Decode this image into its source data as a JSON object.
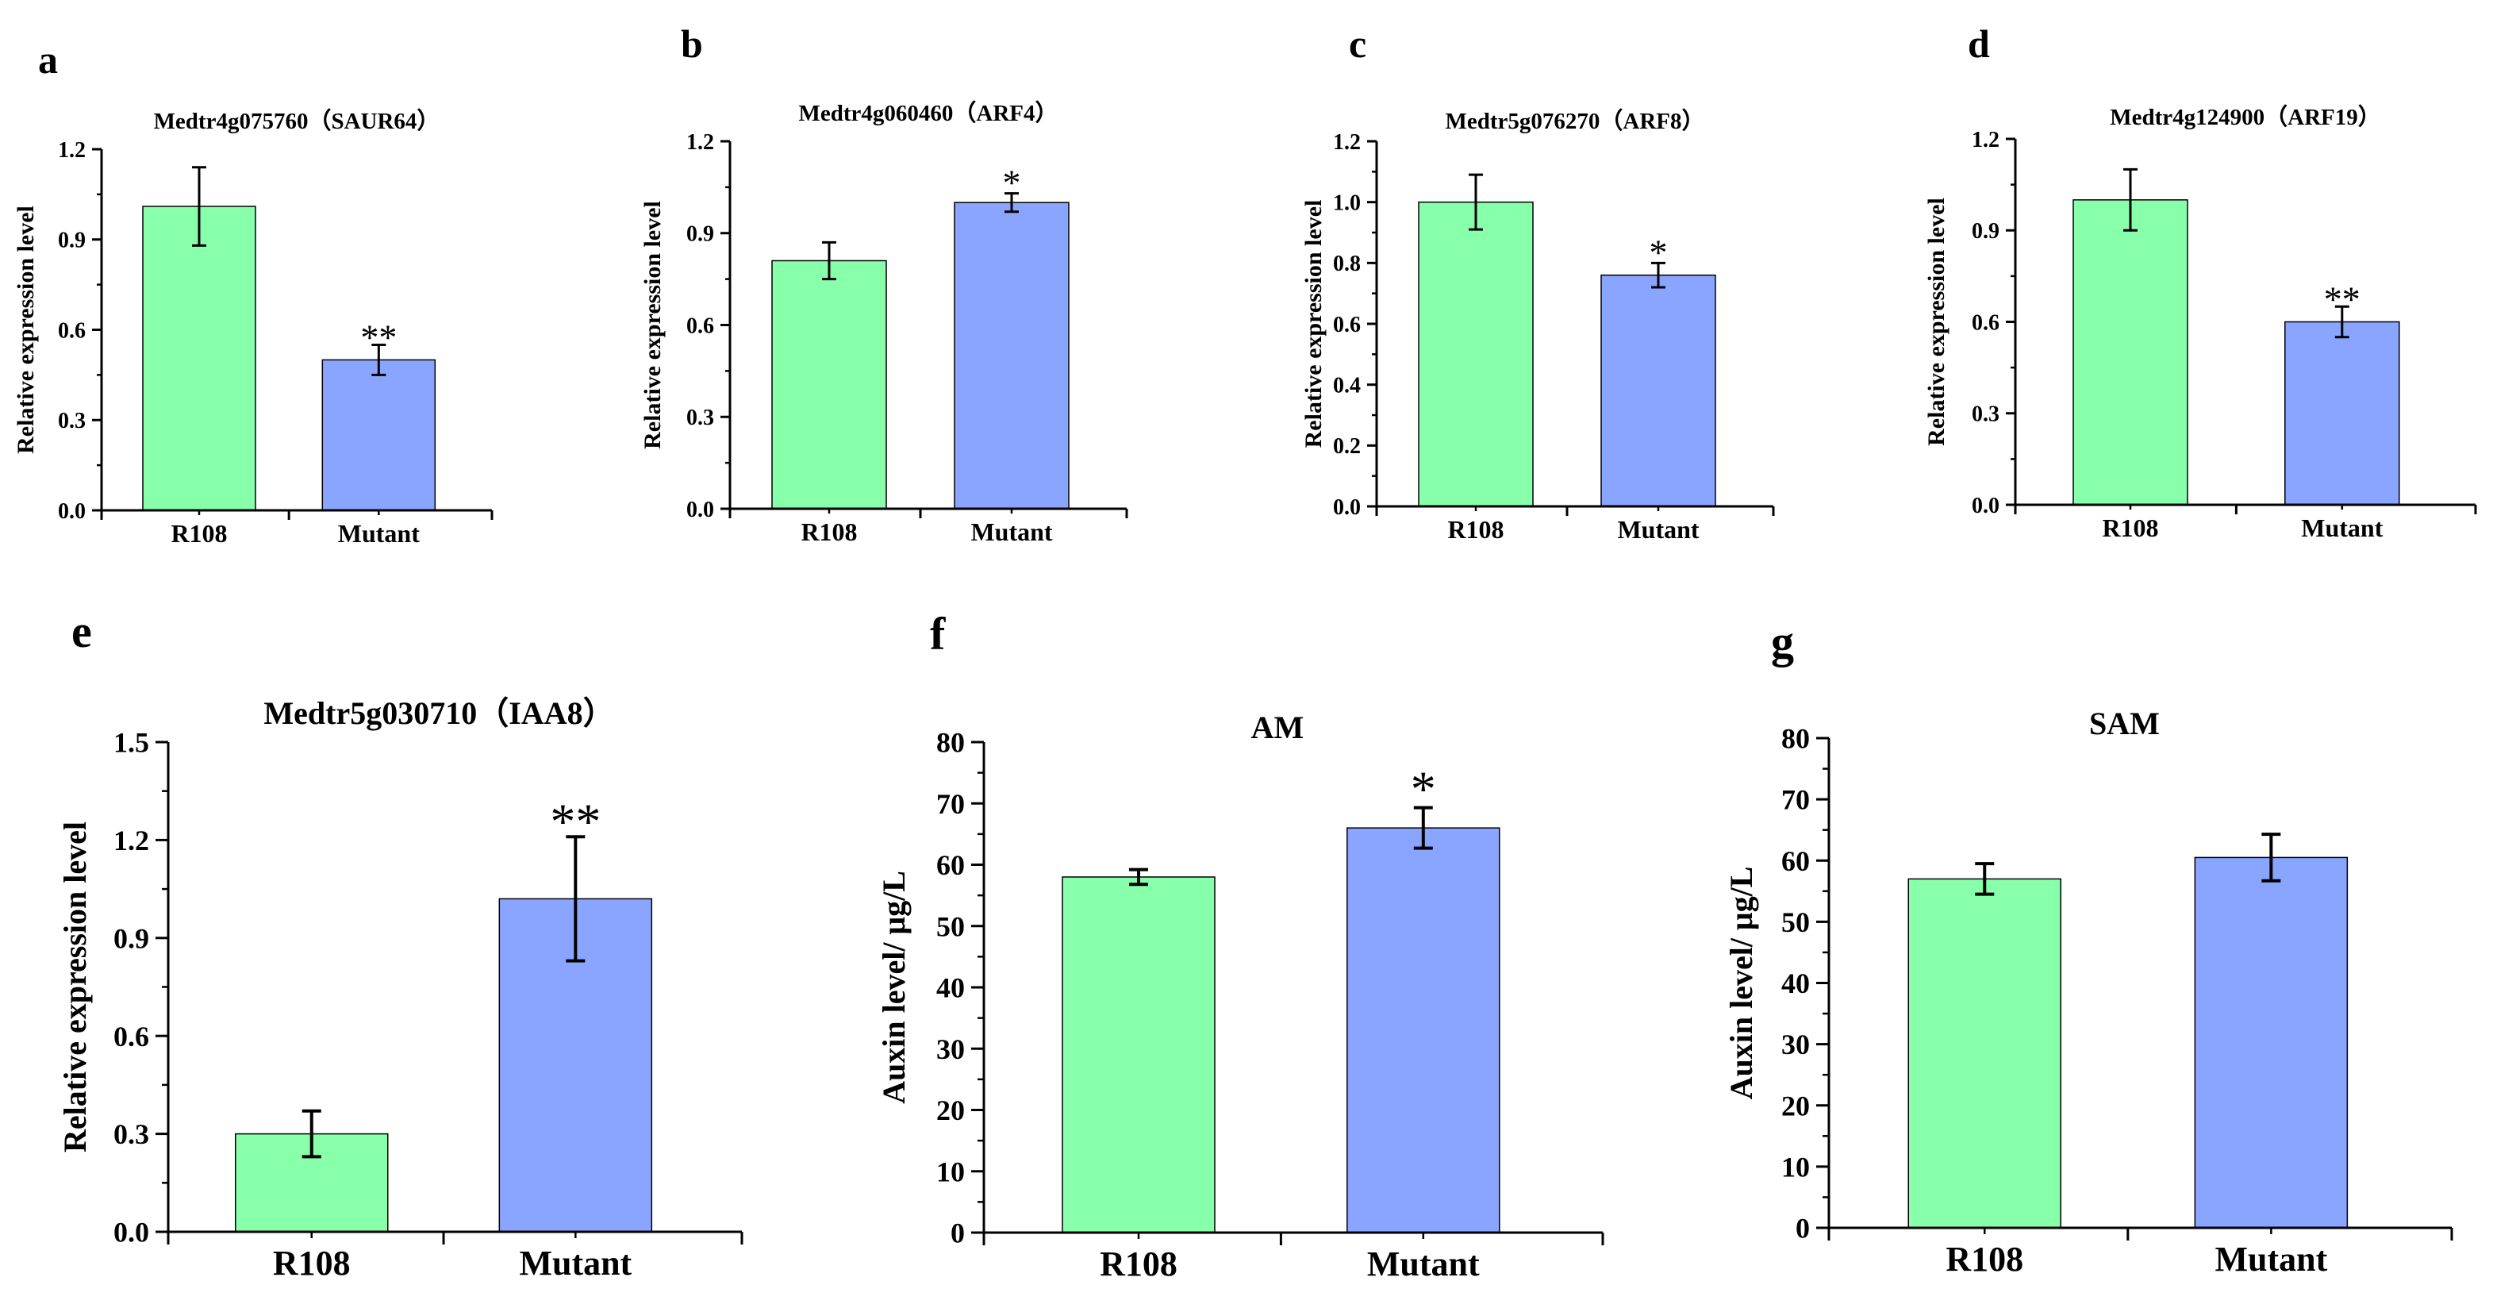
{
  "colors": {
    "r108": "#88ffaa",
    "mutant": "#8aa5ff",
    "axis": "#000000"
  },
  "chart_data": [
    {
      "type": "bar",
      "panel_label": "a",
      "title": "Medtr4g075760（SAUR64）",
      "xlabel": "",
      "ylabel": "Relative expression level",
      "categories": [
        "R108",
        "Mutant"
      ],
      "values": [
        1.01,
        0.5
      ],
      "errors": [
        0.13,
        0.05
      ],
      "significance": [
        "",
        "**"
      ],
      "ylim": [
        0,
        1.2
      ],
      "yticks": [
        0.0,
        0.3,
        0.6,
        0.9,
        1.2
      ],
      "ytick_labels": [
        "0.0",
        "0.3",
        "0.6",
        "0.9",
        "1.2"
      ]
    },
    {
      "type": "bar",
      "panel_label": "b",
      "title": "Medtr4g060460（ARF4）",
      "xlabel": "",
      "ylabel": "Relative expression level",
      "categories": [
        "R108",
        "Mutant"
      ],
      "values": [
        0.81,
        1.0
      ],
      "errors": [
        0.06,
        0.03
      ],
      "significance": [
        "",
        "*"
      ],
      "ylim": [
        0,
        1.2
      ],
      "yticks": [
        0.0,
        0.3,
        0.6,
        0.9,
        1.2
      ],
      "ytick_labels": [
        "0.0",
        "0.3",
        "0.6",
        "0.9",
        "1.2"
      ]
    },
    {
      "type": "bar",
      "panel_label": "c",
      "title": "Medtr5g076270（ARF8）",
      "xlabel": "",
      "ylabel": "Relative expression level",
      "categories": [
        "R108",
        "Mutant"
      ],
      "values": [
        1.0,
        0.76
      ],
      "errors": [
        0.09,
        0.04
      ],
      "significance": [
        "",
        "*"
      ],
      "ylim": [
        0,
        1.2
      ],
      "yticks": [
        0.0,
        0.2,
        0.4,
        0.6,
        0.8,
        1.0,
        1.2
      ],
      "ytick_labels": [
        "0.0",
        "0.2",
        "0.4",
        "0.6",
        "0.8",
        "1.0",
        "1.2"
      ]
    },
    {
      "type": "bar",
      "panel_label": "d",
      "title": "Medtr4g124900（ARF19）",
      "xlabel": "",
      "ylabel": "Relative expression level",
      "categories": [
        "R108",
        "Mutant"
      ],
      "values": [
        1.0,
        0.6
      ],
      "errors": [
        0.1,
        0.05
      ],
      "significance": [
        "",
        "**"
      ],
      "ylim": [
        0,
        1.2
      ],
      "yticks": [
        0.0,
        0.3,
        0.6,
        0.9,
        1.2
      ],
      "ytick_labels": [
        "0.0",
        "0.3",
        "0.6",
        "0.9",
        "1.2"
      ]
    },
    {
      "type": "bar",
      "panel_label": "e",
      "title": "Medtr5g030710（IAA8）",
      "xlabel": "",
      "ylabel": "Relative expression level",
      "categories": [
        "R108",
        "Mutant"
      ],
      "values": [
        0.3,
        1.02
      ],
      "errors": [
        0.07,
        0.19
      ],
      "significance": [
        "",
        "**"
      ],
      "ylim": [
        0,
        1.5
      ],
      "yticks": [
        0.0,
        0.3,
        0.6,
        0.9,
        1.2,
        1.5
      ],
      "ytick_labels": [
        "0.0",
        "0.3",
        "0.6",
        "0.9",
        "1.2",
        "1.5"
      ]
    },
    {
      "type": "bar",
      "panel_label": "f",
      "title": "AM",
      "xlabel": "",
      "ylabel": "Auxin level/ μg/L",
      "categories": [
        "R108",
        "Mutant"
      ],
      "values": [
        58,
        66
      ],
      "errors": [
        1.2,
        3.3
      ],
      "significance": [
        "",
        "*"
      ],
      "ylim": [
        0,
        80
      ],
      "yticks": [
        0,
        10,
        20,
        30,
        40,
        50,
        60,
        70,
        80
      ],
      "ytick_labels": [
        "0",
        "10",
        "20",
        "30",
        "40",
        "50",
        "60",
        "70",
        "80"
      ]
    },
    {
      "type": "bar",
      "panel_label": "g",
      "title": "SAM",
      "xlabel": "",
      "ylabel": "Auxin level/ μg/L",
      "categories": [
        "R108",
        "Mutant"
      ],
      "values": [
        57,
        60.5
      ],
      "errors": [
        2.5,
        3.8
      ],
      "significance": [
        "",
        ""
      ],
      "ylim": [
        0,
        80
      ],
      "yticks": [
        0,
        10,
        20,
        30,
        40,
        50,
        60,
        70,
        80
      ],
      "ytick_labels": [
        "0",
        "10",
        "20",
        "30",
        "40",
        "50",
        "60",
        "70",
        "80"
      ]
    }
  ]
}
